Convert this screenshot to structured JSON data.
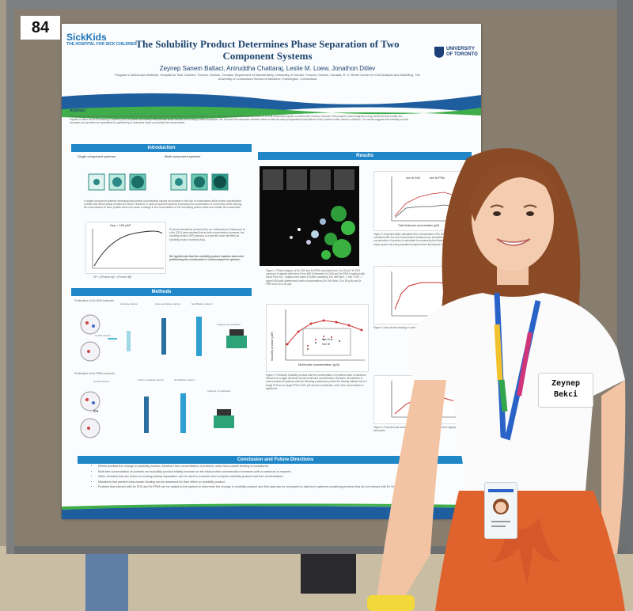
{
  "board_number": "84",
  "poster": {
    "title": "The Solubility Product Determines Phase Separation of Two Component Systems",
    "authors": "Zeynep Sanem Baltaci, Aniruddha Chattaraj, Leslie M. Loew, Jonathon Ditlev",
    "affiliations": "Program in Molecular Medicine, Hospital for Sick Children, Toronto, Ontario, Canada; Department of Biochemistry, University of Toronto, Toronto, Ontario, Canada; R. D. Berlin Center for Cell Analysis and Modeling, The University of Connecticut School of Medicine, Farmington, Connecticut",
    "logo_left_main": "SickKids",
    "logo_left_sub": "THE HOSPITAL FOR SICK CHILDREN",
    "logo_right": "UNIVERSITY OF TORONTO",
    "abstract_title": "Abstract",
    "abstract_text": "Interaction of multivalent proteins can lead to the formation of biomolecular condensates through phase separation. However, how condensates of these multivalent proteins in a multi-component system is determined remains unknown. We prepared phase diagrams using constructs that contain five repeats of either the SH3 homolog 3 domain (SH3) or proline-rich motifs (PRM) domain which interact and undergo phase separation. We hindered the interaction between these constructs using computational simulations of the proteins under various conditions. Our results suggest that solubility product increases and provides an explanation for partitioning of molecules inside and outside the condensates.",
    "sections": {
      "introduction": "Introduction",
      "methods": "Methods",
      "results": "Results",
      "conclusion": "Conclusion and Future Directions"
    },
    "intro": {
      "single_label": "Single-component systems",
      "multi_label": "Multi-component systems",
      "text1": "In single-component systems increasing total protein concentration causes an increase in the size of condensates while protein concentration in dilute and dense phase remains the same. However, in multi-component systems increasing the concentration of one protein while keeping the concentration of other protein same can cause a change in the concentration of the increasing protein inside and outside the condensate.",
      "text2": "Previous simulations performed by our collaborators (Chattaraj et al, eLife 2021) demonstrated that as total concentration increases, the solubility product (SP) plateaus to a specific value identified as solubility product constant (Ksp).",
      "hypothesis": "We hypothesize that the solubility product explains molecules partitioning into condensates in multi-component systems.",
      "sp_formula": "SP = [Protein A]f × [Protein B]f",
      "ksp_label": "Ksp = 180 μM²"
    },
    "methods": {
      "sh3_title": "Purification of 5x SH3 molecule",
      "prm_title": "Purification of 5x PRM molecule",
      "steps_sh3": [
        "Ni-NTA column",
        "Amylose column",
        "Anion exchange column",
        "Gel filtration column",
        "Analysis of purification"
      ],
      "steps_prm": [
        "Ni-NTA column",
        "Cation exchange column",
        "Gel filtration column",
        "Analysis of purification"
      ],
      "multiplier": "x4"
    },
    "results": {
      "fig1_caption": "Figure 1. Phase diagram of 5x SH3 and 5x PRM constructs from 2 to 80 μM. 5x SH3 construct is labeled with Alexa Fluor 488 (2 tetramer) 5x SH3 and 5x PRM is labeled with Alexa Fluor 647. Images were taken in buffer containing 150 mM NaCl, 1 mM TCEP, 1 mg/ml BSA with determined protein concentrations (5x SH3 from 10 to 80 μM) and 5x PRM from 10 to 80 μM.",
      "fig2_caption": "Figure 2. Predicted Solubility product and free concentration of proteins reach a maximum followed by a slight decrease at total molecular concentration increases. Simulations of multi-component systems with the following parameters predict the binding affinity that of a single SH3 and a single PRM is 350 μM and the contribution of the free concentration is significant.",
      "fig3_caption": "Figure 3. Experimentally calculated free concentration of 5x SH3 and 5x PRM is consistent with the free concentration obtained from simulations. Free concentration of proteins is calculated by measuring the fluorescence intensity of empty space and using equations acquired from fluorescent curves.",
      "fig4_caption": "Figure 4. Intra-cluster binding of proteins and therefore the solubility product.",
      "fig5_caption": "Figure 5. Experimental solubility product reaches a maximum then slightly decreases.",
      "fig2_ylabel": "Solubility product (μM²)",
      "fig2_xlabel": "Molecular concentration (μM)",
      "fig3_ylabel": "Molecular Concentration (μM)",
      "fig3_xlabel": "Total Molecular concentration (μM)",
      "legend_a": "free Af",
      "legend_b": "free Bf",
      "fig3_legend_a": "free 5x SH3",
      "fig3_legend_b": "free 5x PRM",
      "fig4_ylabel": "Solubility product"
    },
    "conclusion_points": [
      "NFsim predicts the change in solubility product, therefore free concentration of proteins, when intra-cluster binding is considered.",
      "Both free concentration of proteins and solubility product initially increase as the total protein concentration increases until a maximum is reached.",
      "Other domains that are known to undergo phase separation can be used to measure and compare solubility product and free concentration.",
      "Mutations that prevent intra-cluster binding can be assessed for their effect on solubility product.",
      "Proteins that interact with 5x SH3 and 5x PRM can be added to the system to determine the change in solubility product and this data can be compared to data from systems containing proteins that do not interact with 5x SH3 and 5x PRM."
    ]
  },
  "name_badge": {
    "first": "Zeynep",
    "last": "Bekci"
  },
  "colors": {
    "poster_accent": "#1f86c8",
    "board_frame": "#7a7a78",
    "shirt": "#fbfbfb",
    "skirt": "#e0622c",
    "hair": "#8a4a25"
  }
}
